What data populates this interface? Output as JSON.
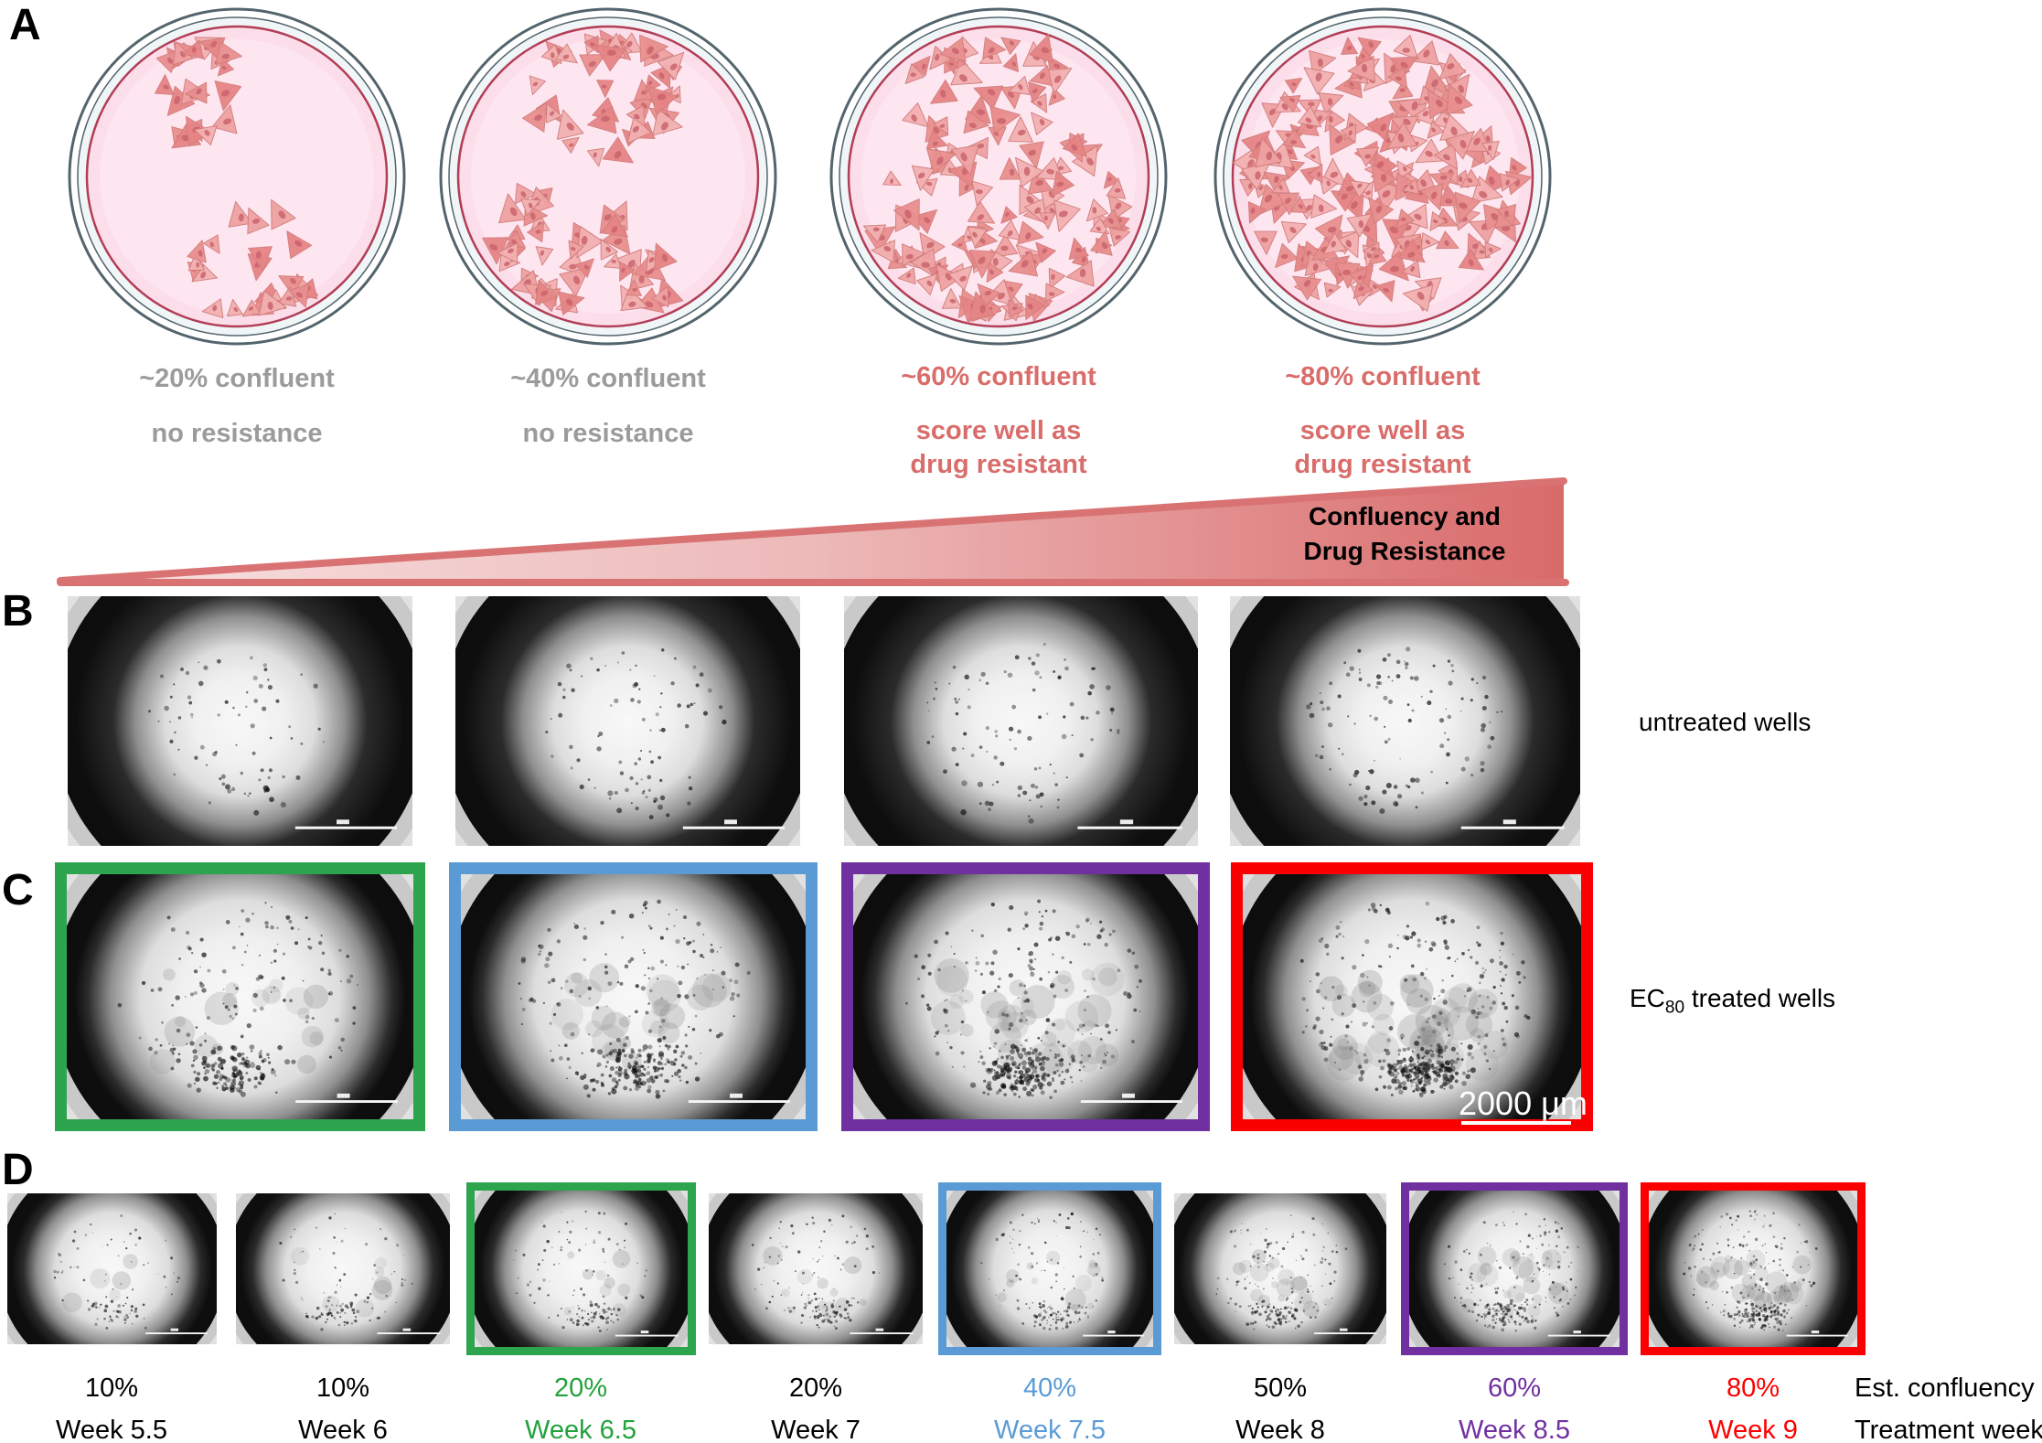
{
  "figure": {
    "panel_a": {
      "label": "A",
      "dishes": [
        {
          "confluency": "~20% confluent",
          "line2": "no resistance",
          "line3": "",
          "text_color": "#9B9B9B"
        },
        {
          "confluency": "~40% confluent",
          "line2": "no resistance",
          "line3": "",
          "text_color": "#9B9B9B"
        },
        {
          "confluency": "~60% confluent",
          "line2": "score well as",
          "line3": "drug resistant",
          "text_color": "#D96D6B"
        },
        {
          "confluency": "~80% confluent",
          "line2": "score well as",
          "line3": "drug resistant",
          "text_color": "#D96D6B"
        }
      ],
      "arrow_line1": "Confluency and",
      "arrow_line2": "Drug Resistance",
      "arrow_color_start": "#F8E2E2",
      "arrow_color_end": "#D96A6A"
    },
    "panel_b": {
      "label": "B",
      "row_label": "untreated wells"
    },
    "panel_c": {
      "label": "C",
      "row_label_prefix": "EC",
      "row_label_sub": "80",
      "row_label_suffix": " treated wells",
      "scale_text": "2000 μm",
      "borders": [
        "#2DA44E",
        "#5B9BD5",
        "#7030A0",
        "#FB0000"
      ]
    },
    "panel_d": {
      "label": "D",
      "wells": [
        {
          "confluency": "10%",
          "week": "Week 5.5",
          "color": "#000000",
          "border": ""
        },
        {
          "confluency": "10%",
          "week": "Week 6",
          "color": "#000000",
          "border": ""
        },
        {
          "confluency": "20%",
          "week": "Week 6.5",
          "color": "#21A23C",
          "border": "#2DA44E"
        },
        {
          "confluency": "20%",
          "week": "Week 7",
          "color": "#000000",
          "border": ""
        },
        {
          "confluency": "40%",
          "week": "Week 7.5",
          "color": "#5B9BD5",
          "border": "#5B9BD5"
        },
        {
          "confluency": "50%",
          "week": "Week 8",
          "color": "#000000",
          "border": ""
        },
        {
          "confluency": "60%",
          "week": "Week 8.5",
          "color": "#7030A0",
          "border": "#7030A0"
        },
        {
          "confluency": "80%",
          "week": "Week 9",
          "color": "#FB0000",
          "border": "#FB0000"
        }
      ],
      "legend_line1": "Est. confluency",
      "legend_line2": "Treatment week"
    }
  }
}
